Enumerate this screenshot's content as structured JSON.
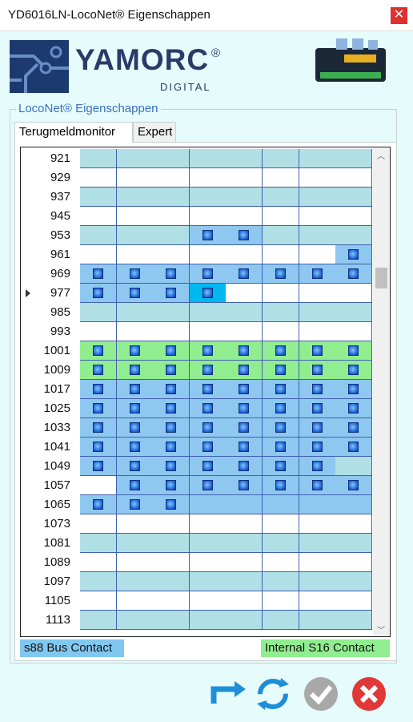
{
  "window": {
    "title": "YD6016LN-LocoNet® Eigenschappen"
  },
  "logo": {
    "brand": "YAMORC",
    "mark": "®",
    "sub": "DIGITAL"
  },
  "group": {
    "title": "LocoNet® Eigenschappen"
  },
  "tabs": [
    "Terugmeldmonitor",
    "Expert"
  ],
  "table": {
    "rows": [
      921,
      929,
      937,
      945,
      953,
      961,
      969,
      977,
      985,
      993,
      1001,
      1009,
      1017,
      1025,
      1033,
      1041,
      1049,
      1057,
      1065,
      1073,
      1081,
      1089,
      1097,
      1105,
      1113
    ]
  },
  "legend": [
    "s88 Bus Contact",
    "Internal S16 Contact"
  ]
}
